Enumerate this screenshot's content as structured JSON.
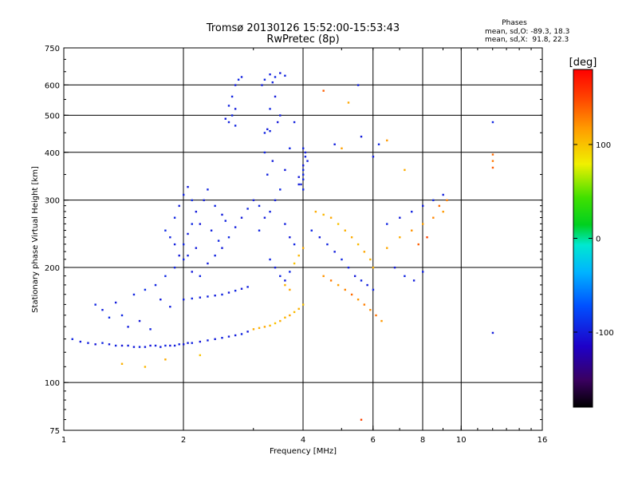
{
  "header": {
    "title_line1": "Tromsø 20130126 15:52:00-15:53:43",
    "title_line2": "RwPretec (8p)"
  },
  "phase_info": {
    "title": "Phases",
    "line_o": "mean, sd,O: -89.3, 18.3",
    "line_x": "mean, sd,X:  91.8, 22.3"
  },
  "colorbar": {
    "label": "[deg]",
    "ticks": [
      {
        "value": 100,
        "label": "100"
      },
      {
        "value": 0,
        "label": "0"
      },
      {
        "value": -100,
        "label": "-100"
      }
    ],
    "range": [
      -180,
      180
    ]
  },
  "chart_data": {
    "type": "scatter",
    "title": "Tromsø 20130126 15:52:00-15:53:43",
    "subtitle": "RwPretec (8p)",
    "xlabel": "Frequency [MHz]",
    "ylabel": "Stationary phase Virtual Height [km]",
    "x_scale": "log",
    "y_scale": "log",
    "xlim": [
      1,
      16
    ],
    "ylim": [
      75,
      750
    ],
    "x_ticks": [
      {
        "value": 1,
        "label": "1"
      },
      {
        "value": 2,
        "label": "2"
      },
      {
        "value": 4,
        "label": "4"
      },
      {
        "value": 6,
        "label": "6"
      },
      {
        "value": 8,
        "label": "8"
      },
      {
        "value": 10,
        "label": "10"
      },
      {
        "value": 16,
        "label": "16"
      }
    ],
    "y_ticks": [
      {
        "value": 75,
        "label": "75"
      },
      {
        "value": 100,
        "label": "100"
      },
      {
        "value": 200,
        "label": "200"
      },
      {
        "value": 300,
        "label": "300"
      },
      {
        "value": 400,
        "label": "400"
      },
      {
        "value": 500,
        "label": "500"
      },
      {
        "value": 600,
        "label": "600"
      },
      {
        "value": 750,
        "label": "750"
      }
    ],
    "grid_x": [
      2,
      4,
      6,
      8,
      10
    ],
    "grid_y": [
      100,
      200,
      300,
      400,
      500,
      600
    ],
    "color_variable": "phase (deg)",
    "points": [
      [
        1.05,
        130,
        -95
      ],
      [
        1.1,
        128,
        -100
      ],
      [
        1.15,
        127,
        -98
      ],
      [
        1.2,
        126,
        -102
      ],
      [
        1.25,
        127,
        -95
      ],
      [
        1.3,
        126,
        -100
      ],
      [
        1.35,
        125,
        -97
      ],
      [
        1.4,
        125,
        -103
      ],
      [
        1.45,
        125,
        -99
      ],
      [
        1.5,
        124,
        -101
      ],
      [
        1.55,
        124,
        -96
      ],
      [
        1.6,
        124,
        -100
      ],
      [
        1.65,
        125,
        -104
      ],
      [
        1.7,
        125,
        -98
      ],
      [
        1.75,
        124,
        -100
      ],
      [
        1.8,
        125,
        -95
      ],
      [
        1.85,
        125,
        -102
      ],
      [
        1.9,
        125,
        -99
      ],
      [
        1.95,
        126,
        -97
      ],
      [
        2.0,
        126,
        -101
      ],
      [
        2.05,
        127,
        -100
      ],
      [
        2.1,
        127,
        -96
      ],
      [
        2.2,
        128,
        -103
      ],
      [
        2.3,
        129,
        -98
      ],
      [
        2.4,
        130,
        -100
      ],
      [
        2.5,
        131,
        -97
      ],
      [
        2.6,
        132,
        -101
      ],
      [
        2.7,
        133,
        -99
      ],
      [
        2.8,
        134,
        -95
      ],
      [
        2.9,
        136,
        -102
      ],
      [
        3.0,
        138,
        110
      ],
      [
        3.1,
        139,
        108
      ],
      [
        3.2,
        140,
        112
      ],
      [
        3.3,
        141,
        105
      ],
      [
        3.4,
        143,
        100
      ],
      [
        3.5,
        145,
        110
      ],
      [
        3.6,
        148,
        106
      ],
      [
        3.7,
        150,
        112
      ],
      [
        3.8,
        153,
        104
      ],
      [
        3.9,
        156,
        108
      ],
      [
        4.0,
        160,
        100
      ],
      [
        1.2,
        160,
        -95
      ],
      [
        1.25,
        155,
        -98
      ],
      [
        1.3,
        148,
        -92
      ],
      [
        1.35,
        162,
        -100
      ],
      [
        1.4,
        150,
        -94
      ],
      [
        1.45,
        140,
        -99
      ],
      [
        1.5,
        170,
        -96
      ],
      [
        1.55,
        145,
        -102
      ],
      [
        1.6,
        175,
        -91
      ],
      [
        1.65,
        138,
        -97
      ],
      [
        1.7,
        180,
        -95
      ],
      [
        1.75,
        165,
        -100
      ],
      [
        1.8,
        190,
        -93
      ],
      [
        1.85,
        158,
        -98
      ],
      [
        1.9,
        200,
        -96
      ],
      [
        1.95,
        215,
        -101
      ],
      [
        2.0,
        230,
        -95
      ],
      [
        2.05,
        245,
        -99
      ],
      [
        2.1,
        260,
        -94
      ],
      [
        2.15,
        280,
        -100
      ],
      [
        1.8,
        250,
        -92
      ],
      [
        1.85,
        240,
        -97
      ],
      [
        1.9,
        270,
        -95
      ],
      [
        1.95,
        290,
        -99
      ],
      [
        2.0,
        310,
        -96
      ],
      [
        2.05,
        325,
        -100
      ],
      [
        2.1,
        300,
        -93
      ],
      [
        1.9,
        230,
        -98
      ],
      [
        2.0,
        210,
        -95
      ],
      [
        2.1,
        195,
        -101
      ],
      [
        2.0,
        165,
        -98
      ],
      [
        2.1,
        166,
        -95
      ],
      [
        2.2,
        167,
        -101
      ],
      [
        2.3,
        168,
        -97
      ],
      [
        2.4,
        169,
        -99
      ],
      [
        2.5,
        170,
        -96
      ],
      [
        2.6,
        172,
        -102
      ],
      [
        2.7,
        174,
        -95
      ],
      [
        2.8,
        176,
        -100
      ],
      [
        2.9,
        178,
        -97
      ],
      [
        2.2,
        190,
        -95
      ],
      [
        2.3,
        205,
        -99
      ],
      [
        2.4,
        215,
        -96
      ],
      [
        2.5,
        225,
        -100
      ],
      [
        2.6,
        240,
        -94
      ],
      [
        2.7,
        255,
        -98
      ],
      [
        2.8,
        270,
        -101
      ],
      [
        2.9,
        285,
        -95
      ],
      [
        3.0,
        300,
        -99
      ],
      [
        3.1,
        290,
        -96
      ],
      [
        2.6,
        480,
        -98
      ],
      [
        2.65,
        500,
        -95
      ],
      [
        2.7,
        520,
        -100
      ],
      [
        2.65,
        560,
        -96
      ],
      [
        2.7,
        600,
        -99
      ],
      [
        2.75,
        620,
        -94
      ],
      [
        2.6,
        530,
        -97
      ],
      [
        2.55,
        490,
        -100
      ],
      [
        2.7,
        470,
        -95
      ],
      [
        2.8,
        630,
        -98
      ],
      [
        3.2,
        450,
        -95
      ],
      [
        3.25,
        460,
        -100
      ],
      [
        3.3,
        455,
        -96
      ],
      [
        3.15,
        600,
        -99
      ],
      [
        3.2,
        620,
        -94
      ],
      [
        3.3,
        640,
        -98
      ],
      [
        3.4,
        630,
        -95
      ],
      [
        3.5,
        645,
        -100
      ],
      [
        3.6,
        635,
        -96
      ],
      [
        3.35,
        610,
        -97
      ],
      [
        3.1,
        250,
        -95
      ],
      [
        3.2,
        270,
        -100
      ],
      [
        3.3,
        280,
        -96
      ],
      [
        3.4,
        300,
        -99
      ],
      [
        3.5,
        320,
        -94
      ],
      [
        3.6,
        260,
        -98
      ],
      [
        3.7,
        240,
        -101
      ],
      [
        3.8,
        230,
        -95
      ],
      [
        3.9,
        330,
        -99
      ],
      [
        4.0,
        340,
        -96
      ],
      [
        3.3,
        210,
        -95
      ],
      [
        3.4,
        200,
        -99
      ],
      [
        3.5,
        190,
        -96
      ],
      [
        3.6,
        185,
        -100
      ],
      [
        3.7,
        195,
        -94
      ],
      [
        3.8,
        205,
        100
      ],
      [
        3.9,
        215,
        105
      ],
      [
        4.0,
        225,
        110
      ],
      [
        3.6,
        180,
        108
      ],
      [
        3.7,
        175,
        112
      ],
      [
        4.0,
        350,
        -95
      ],
      [
        4.0,
        370,
        -100
      ],
      [
        4.05,
        390,
        -96
      ],
      [
        3.95,
        330,
        -99
      ],
      [
        4.0,
        360,
        -94
      ],
      [
        4.1,
        380,
        -98
      ],
      [
        3.9,
        345,
        -101
      ],
      [
        4.0,
        320,
        -95
      ],
      [
        4.05,
        400,
        -99
      ],
      [
        4.0,
        410,
        -96
      ],
      [
        4.3,
        280,
        110
      ],
      [
        4.5,
        275,
        105
      ],
      [
        4.7,
        270,
        112
      ],
      [
        4.9,
        260,
        100
      ],
      [
        5.1,
        250,
        108
      ],
      [
        5.3,
        240,
        110
      ],
      [
        5.5,
        230,
        104
      ],
      [
        5.7,
        220,
        112
      ],
      [
        5.9,
        210,
        106
      ],
      [
        6.0,
        200,
        108
      ],
      [
        4.5,
        190,
        120
      ],
      [
        4.7,
        185,
        130
      ],
      [
        4.9,
        180,
        115
      ],
      [
        5.1,
        175,
        125
      ],
      [
        5.3,
        170,
        135
      ],
      [
        5.5,
        165,
        118
      ],
      [
        5.7,
        160,
        128
      ],
      [
        5.9,
        155,
        122
      ],
      [
        6.1,
        150,
        132
      ],
      [
        6.3,
        145,
        118
      ],
      [
        4.2,
        250,
        -95
      ],
      [
        4.4,
        240,
        -100
      ],
      [
        4.6,
        230,
        -96
      ],
      [
        4.8,
        220,
        -99
      ],
      [
        5.0,
        210,
        -94
      ],
      [
        5.2,
        200,
        -98
      ],
      [
        5.4,
        190,
        -101
      ],
      [
        5.6,
        185,
        -95
      ],
      [
        5.8,
        180,
        -99
      ],
      [
        6.0,
        175,
        -96
      ],
      [
        6.5,
        260,
        -95
      ],
      [
        7.0,
        270,
        -100
      ],
      [
        7.5,
        280,
        -96
      ],
      [
        8.0,
        290,
        -99
      ],
      [
        8.5,
        300,
        -94
      ],
      [
        9.0,
        310,
        -98
      ],
      [
        6.8,
        200,
        -101
      ],
      [
        7.2,
        190,
        -95
      ],
      [
        7.6,
        185,
        -99
      ],
      [
        8.0,
        195,
        -96
      ],
      [
        7.0,
        240,
        110
      ],
      [
        7.5,
        250,
        120
      ],
      [
        8.0,
        260,
        115
      ],
      [
        8.5,
        270,
        125
      ],
      [
        9.0,
        280,
        118
      ],
      [
        7.8,
        230,
        140
      ],
      [
        8.2,
        240,
        150
      ],
      [
        8.8,
        290,
        135
      ],
      [
        9.2,
        300,
        128
      ],
      [
        6.5,
        225,
        112
      ],
      [
        1.6,
        110,
        105
      ],
      [
        1.8,
        115,
        110
      ],
      [
        2.2,
        118,
        100
      ],
      [
        1.4,
        112,
        108
      ],
      [
        5.6,
        80,
        150
      ],
      [
        12.0,
        480,
        -95
      ],
      [
        12.0,
        395,
        135
      ],
      [
        12.0,
        380,
        130
      ],
      [
        12.0,
        365,
        140
      ],
      [
        12.0,
        135,
        -100
      ],
      [
        5.5,
        600,
        -96
      ],
      [
        4.5,
        580,
        140
      ],
      [
        5.2,
        540,
        112
      ],
      [
        4.8,
        420,
        -98
      ],
      [
        5.6,
        440,
        -100
      ],
      [
        5.0,
        410,
        115
      ],
      [
        6.2,
        420,
        -95
      ],
      [
        6.5,
        430,
        118
      ],
      [
        6.0,
        390,
        -99
      ],
      [
        7.2,
        360,
        110
      ],
      [
        3.4,
        560,
        -100
      ],
      [
        3.3,
        520,
        -95
      ],
      [
        3.5,
        500,
        -98
      ],
      [
        3.45,
        480,
        -102
      ],
      [
        3.2,
        400,
        -96
      ],
      [
        3.35,
        380,
        -99
      ],
      [
        3.25,
        350,
        -97
      ],
      [
        3.6,
        360,
        -100
      ],
      [
        3.7,
        410,
        -95
      ],
      [
        3.8,
        480,
        -98
      ],
      [
        2.3,
        320,
        -96
      ],
      [
        2.25,
        300,
        -99
      ],
      [
        2.4,
        290,
        -95
      ],
      [
        2.5,
        275,
        -100
      ],
      [
        2.55,
        265,
        -96
      ],
      [
        2.2,
        260,
        -102
      ],
      [
        2.35,
        250,
        -98
      ],
      [
        2.45,
        235,
        -95
      ],
      [
        2.15,
        225,
        -100
      ],
      [
        2.05,
        215,
        -97
      ]
    ]
  }
}
